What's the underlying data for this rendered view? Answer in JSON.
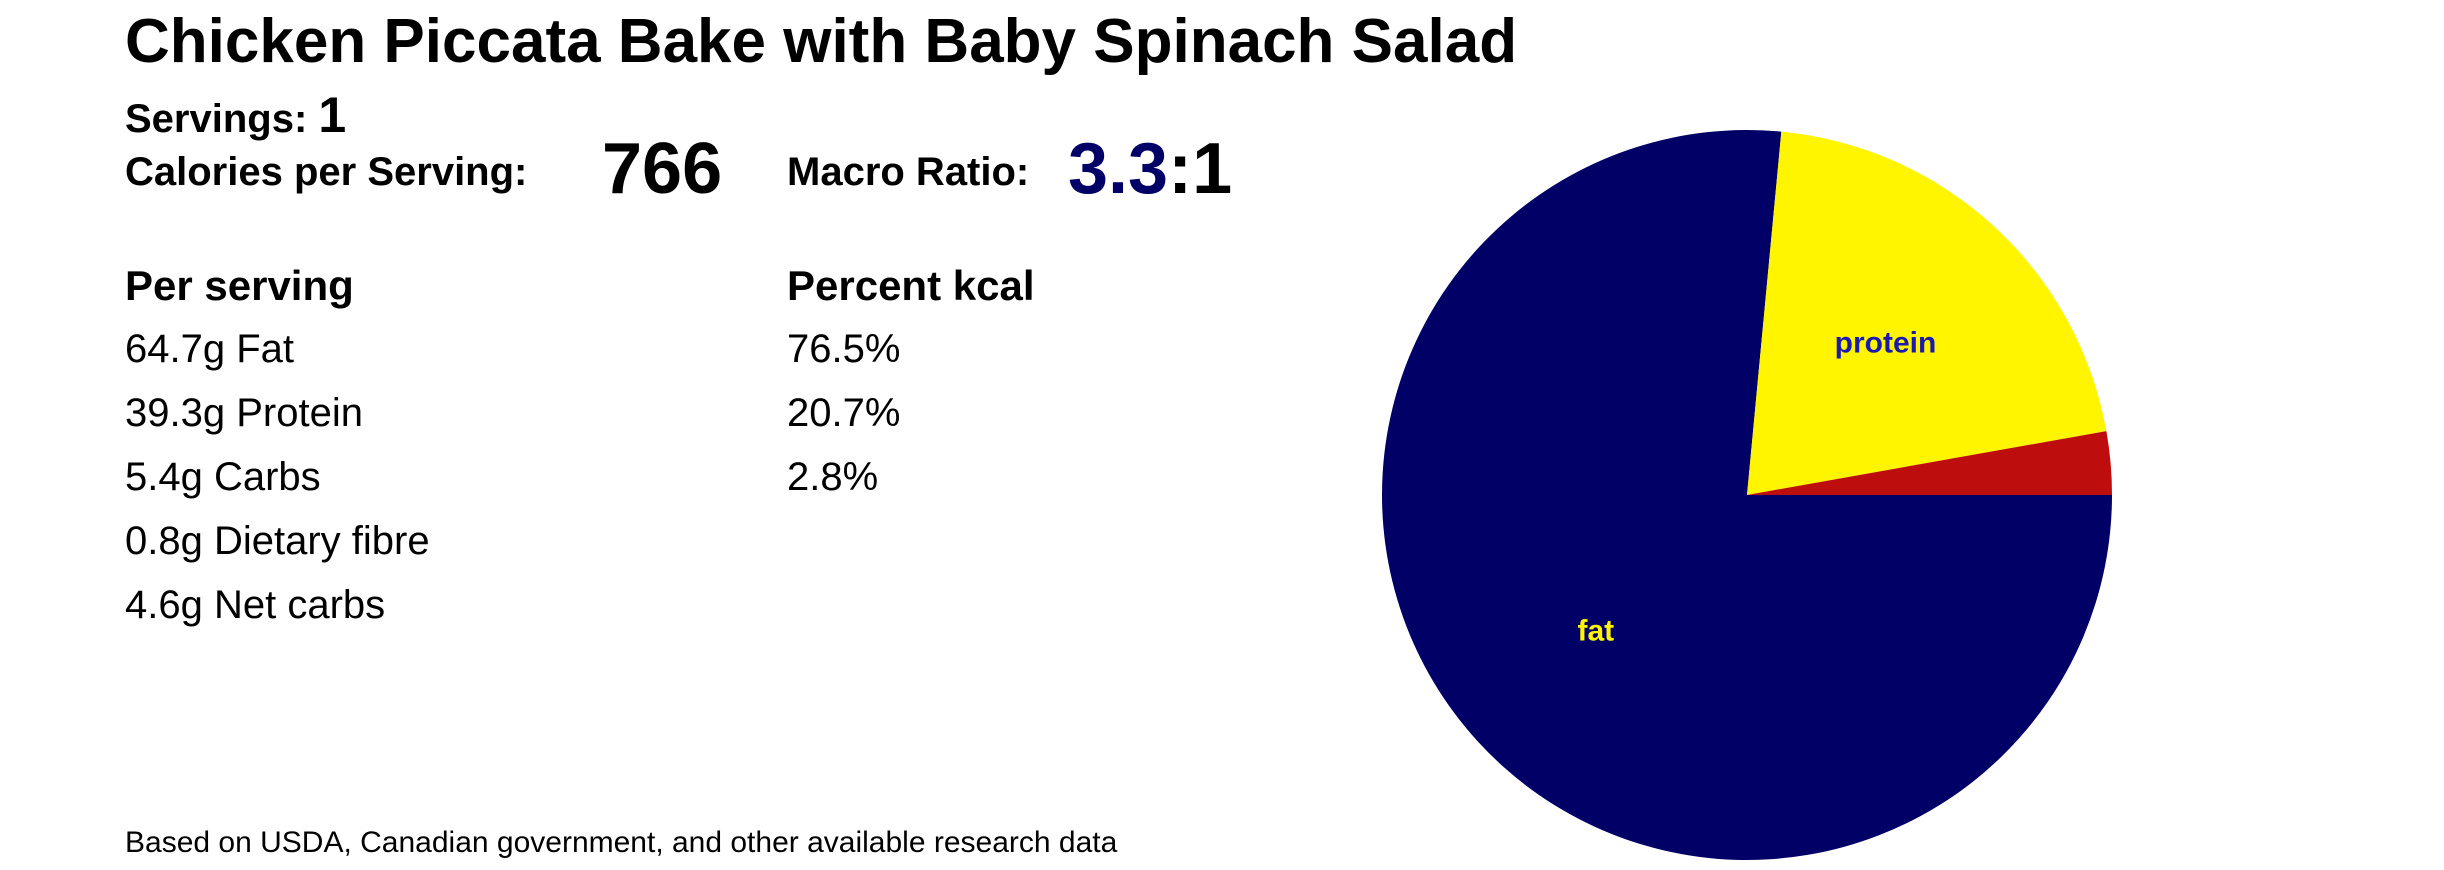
{
  "recipe": {
    "title": "Chicken Piccata Bake with Baby Spinach Salad",
    "servings_label": "Servings:",
    "servings_value": "1",
    "calories_label": "Calories per Serving:",
    "calories_value": "766",
    "macro_label": "Macro Ratio:",
    "macro_ratio_value": "3.3",
    "macro_ratio_suffix": ":1"
  },
  "table": {
    "per_serving_header": "Per serving",
    "percent_header": "Percent kcal",
    "per_serving_rows": [
      "64.7g Fat",
      "39.3g Protein",
      "5.4g Carbs",
      "0.8g Dietary fibre",
      "4.6g Net carbs"
    ],
    "percent_rows": [
      "76.5%",
      "20.7%",
      "2.8%"
    ]
  },
  "footer": "Based on USDA, Canadian government, and other available research data",
  "colors": {
    "fat": "#000066",
    "protein": "#FFF500",
    "carbs": "#BE0D0D",
    "ratio_accent": "#000066"
  },
  "chart_data": {
    "type": "pie",
    "slices": [
      {
        "label": "fat",
        "value": 76.5,
        "color": "#000066",
        "label_color": "#FFF500"
      },
      {
        "label": "protein",
        "value": 20.7,
        "color": "#FFF500",
        "label_color": "#1A1AB0"
      },
      {
        "label": "",
        "value": 2.8,
        "color": "#BE0D0D",
        "label_color": "#FFFFFF"
      }
    ],
    "start": "3 o'clock",
    "direction": "clockwise"
  }
}
